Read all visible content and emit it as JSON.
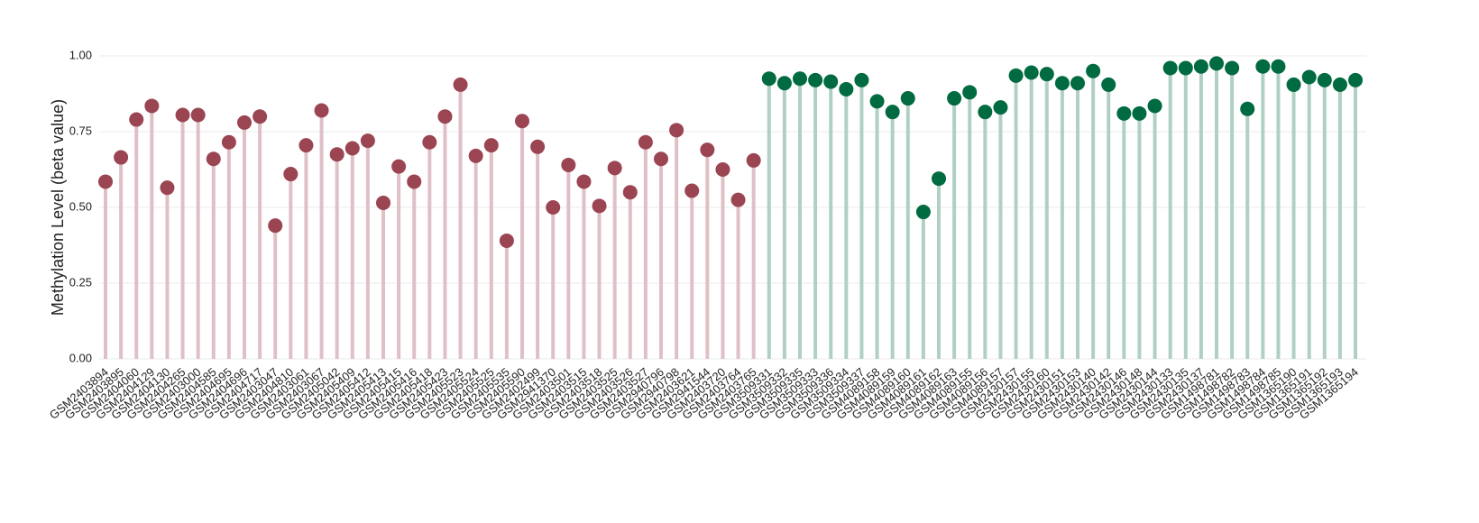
{
  "chart_data": {
    "type": "lollipop",
    "y_label": "Methylation Level (beta value)",
    "ylim": [
      0,
      1
    ],
    "yticks": [
      {
        "value": 0,
        "label": "0.00"
      },
      {
        "value": 0.25,
        "label": "0.25"
      },
      {
        "value": 0.5,
        "label": "0.50"
      },
      {
        "value": 0.75,
        "label": "0.75"
      },
      {
        "value": 1,
        "label": "1.00"
      }
    ],
    "grid": true,
    "categories": [
      "GSM2403894",
      "GSM2403895",
      "GSM2404060",
      "GSM2404129",
      "GSM2404130",
      "GSM2404265",
      "GSM2403000",
      "GSM2404585",
      "GSM2404695",
      "GSM2404696",
      "GSM2404717",
      "GSM2403047",
      "GSM2404810",
      "GSM2403061",
      "GSM2403067",
      "GSM2405042",
      "GSM2405409",
      "GSM2405412",
      "GSM2405413",
      "GSM2405415",
      "GSM2405416",
      "GSM2405418",
      "GSM2405423",
      "GSM2405523",
      "GSM2405524",
      "GSM2405525",
      "GSM2405535",
      "GSM2405590",
      "GSM2402499",
      "GSM2941370",
      "GSM2403501",
      "GSM2403515",
      "GSM2403518",
      "GSM2403525",
      "GSM2403526",
      "GSM2403527",
      "GSM2940796",
      "GSM2940798",
      "GSM2403621",
      "GSM2941544",
      "GSM2403720",
      "GSM2403764",
      "GSM2403765",
      "GSM3509331",
      "GSM3509332",
      "GSM3509335",
      "GSM3509333",
      "GSM3509336",
      "GSM3509334",
      "GSM3509337",
      "GSM4089158",
      "GSM4089159",
      "GSM4089160",
      "GSM4089161",
      "GSM4089162",
      "GSM4089163",
      "GSM4089155",
      "GSM4089156",
      "GSM4089157",
      "GSM2430157",
      "GSM2430155",
      "GSM2430160",
      "GSM2430151",
      "GSM2430153",
      "GSM2430140",
      "GSM2430142",
      "GSM2430146",
      "GSM2430148",
      "GSM2430144",
      "GSM2430133",
      "GSM2430135",
      "GSM2430137",
      "GSM1498781",
      "GSM1498782",
      "GSM1498783",
      "GSM1498784",
      "GSM1498785",
      "GSM1365190",
      "GSM1365191",
      "GSM1365192",
      "GSM1365193",
      "GSM1365194"
    ],
    "series": [
      {
        "color": "#9b4452",
        "stem_color": "#dfc0c6",
        "values": [
          0.585,
          0.665,
          0.79,
          0.835,
          0.565,
          0.805,
          0.805,
          0.66,
          0.715,
          0.78,
          0.8,
          0.44,
          0.61,
          0.705,
          0.82,
          0.675,
          0.695,
          0.72,
          0.515,
          0.635,
          0.585,
          0.715,
          0.8,
          0.905,
          0.67,
          0.705,
          0.39,
          0.785,
          0.7,
          0.5,
          0.64,
          0.585,
          0.505,
          0.63,
          0.55,
          0.715,
          0.66,
          0.755,
          0.555,
          0.69,
          0.625,
          0.525,
          0.655,
          null,
          null,
          null,
          null,
          null,
          null,
          null,
          null,
          null,
          null,
          null,
          null,
          null,
          null,
          null,
          null,
          null,
          null,
          null,
          null,
          null,
          null,
          null,
          null,
          null,
          null,
          null,
          null,
          null,
          null,
          null,
          null,
          null,
          null,
          null,
          null,
          null,
          null,
          null
        ]
      },
      {
        "color": "#006b40",
        "stem_color": "#b0d0c3",
        "values": [
          null,
          null,
          null,
          null,
          null,
          null,
          null,
          null,
          null,
          null,
          null,
          null,
          null,
          null,
          null,
          null,
          null,
          null,
          null,
          null,
          null,
          null,
          null,
          null,
          null,
          null,
          null,
          null,
          null,
          null,
          null,
          null,
          null,
          null,
          null,
          null,
          null,
          null,
          null,
          null,
          null,
          null,
          null,
          0.925,
          0.91,
          0.925,
          0.92,
          0.915,
          0.89,
          0.92,
          0.85,
          0.815,
          0.86,
          0.485,
          0.595,
          0.86,
          0.88,
          0.815,
          0.83,
          0.935,
          0.945,
          0.94,
          0.91,
          0.91,
          0.95,
          0.905,
          0.81,
          0.81,
          0.835,
          0.96,
          0.96,
          0.965,
          0.975,
          0.96,
          0.825,
          0.965,
          0.965,
          0.905,
          0.93,
          0.92,
          0.905,
          0.92
        ]
      }
    ]
  }
}
